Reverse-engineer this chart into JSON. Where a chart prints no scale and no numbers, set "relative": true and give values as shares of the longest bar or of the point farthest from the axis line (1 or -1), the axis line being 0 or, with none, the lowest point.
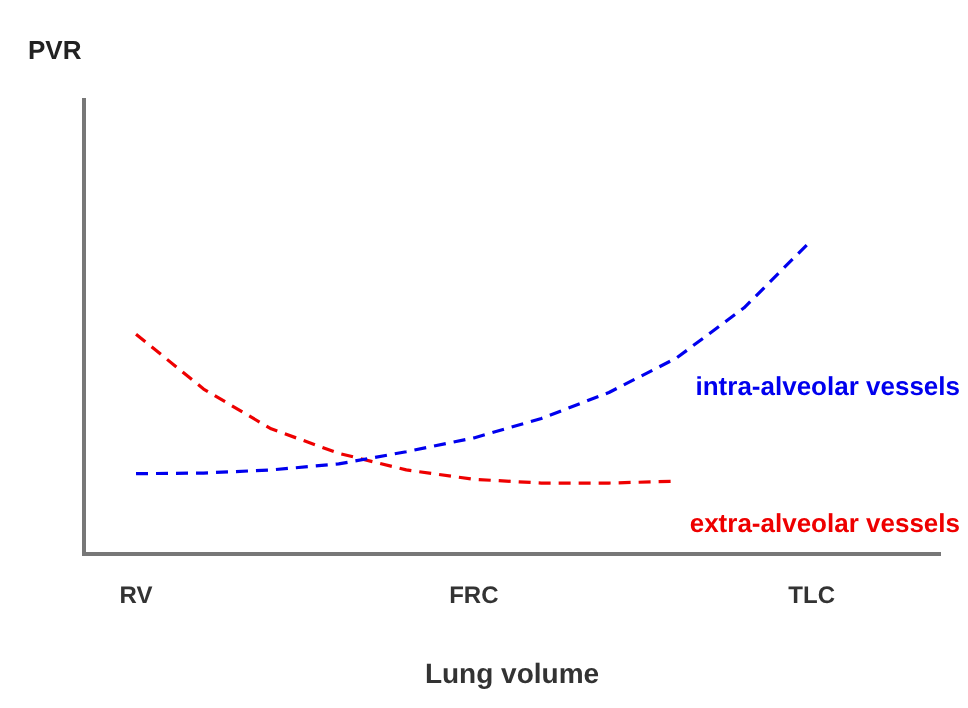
{
  "chart_data": {
    "type": "line",
    "relative": true,
    "xlabel": "Lung volume",
    "annotations": [
      "PVR"
    ],
    "categories": [
      "RV",
      null,
      null,
      null,
      null,
      "FRC",
      null,
      null,
      null,
      null,
      "TLC"
    ],
    "grid": false,
    "legend": false,
    "marker": "none",
    "line_style": "dashed",
    "tick_labels": "x",
    "series": [
      {
        "name": "intra-alveolar vessels",
        "color": "#0000ee",
        "values": [
          0.255,
          0.257,
          0.267,
          0.286,
          0.325,
          0.369,
          0.431,
          0.514,
          0.624,
          0.784,
          1
        ]
      },
      {
        "name": "extra-alveolar vessels",
        "color": "#ee0000",
        "values": [
          0.7,
          0.525,
          0.398,
          0.32,
          0.267,
          0.237,
          0.225,
          0.225,
          0.231,
          null,
          null
        ]
      }
    ]
  }
}
